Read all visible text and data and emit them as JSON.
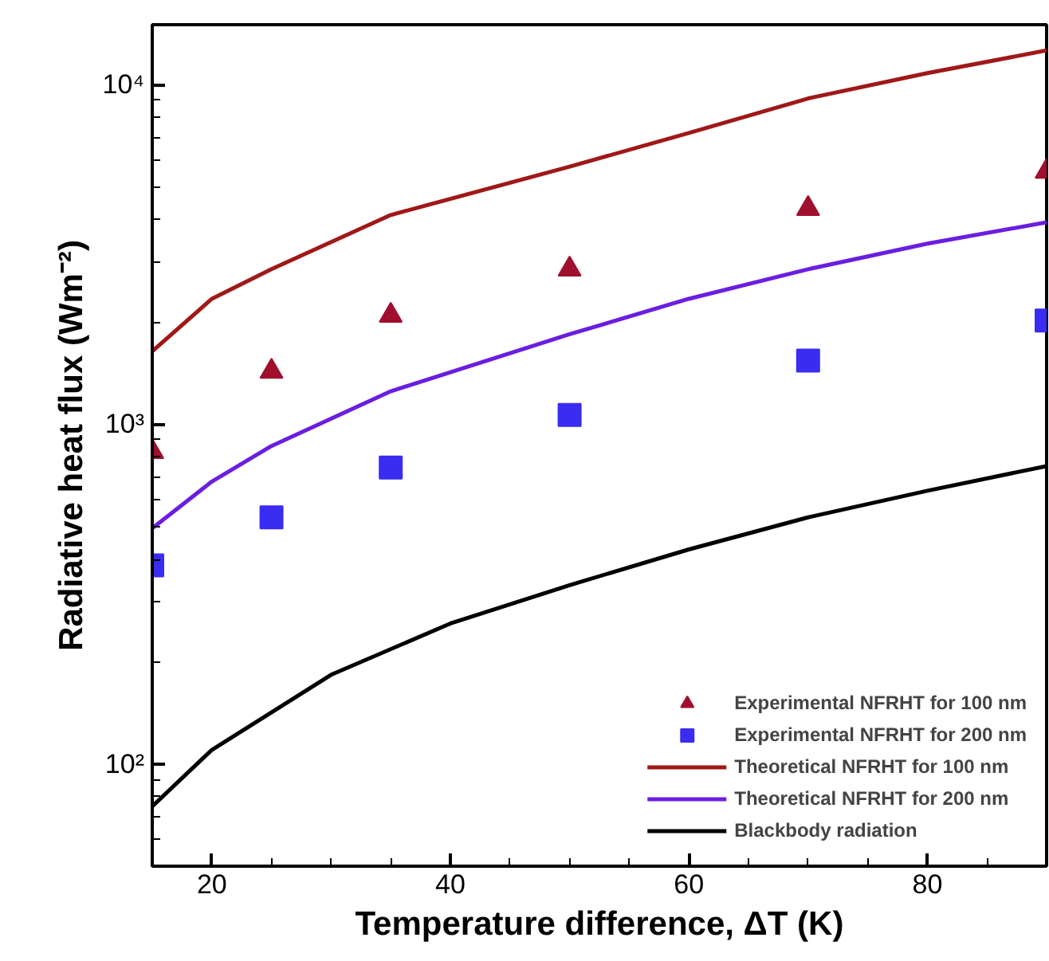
{
  "chart_data": {
    "type": "line",
    "xlabel": "Temperature difference, ΔT (K)",
    "ylabel": "Radiative heat flux (Wm⁻²)",
    "xlim": [
      15,
      90
    ],
    "xticks": [
      20,
      40,
      60,
      80
    ],
    "ylim": [
      50,
      15000
    ],
    "log": true,
    "yticks": [
      {
        "value": 100,
        "label": "10²"
      },
      {
        "value": 1000,
        "label": "10³"
      },
      {
        "value": 10000,
        "label": "10⁴"
      }
    ],
    "grid": false,
    "legend": "bottom right",
    "series": [
      {
        "name": "Experimental NFRHT for 100 nm",
        "type": "scatter",
        "marker": "triangle",
        "color": "#a0102e",
        "x": [
          15,
          25,
          35,
          50,
          70,
          90
        ],
        "values": [
          830,
          1430,
          2090,
          2860,
          4310,
          5550
        ]
      },
      {
        "name": "Experimental NFRHT for 200 nm",
        "type": "scatter",
        "marker": "square",
        "color": "#3a2cf0",
        "x": [
          15,
          25,
          35,
          50,
          70,
          90
        ],
        "values": [
          384,
          532,
          745,
          1065,
          1540,
          2020
        ]
      },
      {
        "name": "Theoretical NFRHT for 100 nm",
        "line_style": "solid",
        "color": "#a01818",
        "x": [
          15,
          20,
          25,
          35,
          50,
          60,
          70,
          80,
          90
        ],
        "values": [
          1640,
          2340,
          2860,
          4130,
          5730,
          7200,
          9100,
          10800,
          12600
        ]
      },
      {
        "name": "Theoretical NFRHT for 200 nm",
        "line_style": "solid",
        "color": "#6a1ee0",
        "x": [
          15,
          20,
          25,
          35,
          50,
          60,
          70,
          80,
          90
        ],
        "values": [
          494,
          678,
          863,
          1250,
          1840,
          2340,
          2860,
          3400,
          3930
        ]
      },
      {
        "name": "Blackbody radiation",
        "line_style": "solid",
        "color": "#000000",
        "x": [
          15,
          20,
          30,
          40,
          50,
          60,
          70,
          80,
          90
        ],
        "values": [
          75,
          110,
          183,
          259,
          336,
          428,
          532,
          637,
          753
        ]
      }
    ]
  }
}
